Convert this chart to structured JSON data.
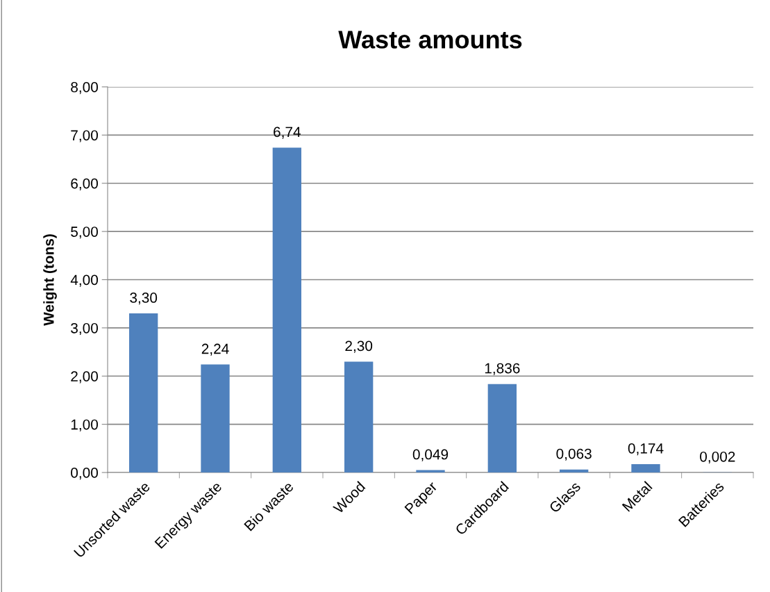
{
  "chart_data": {
    "type": "bar",
    "title": "Waste amounts",
    "ylabel": "Weight (tons)",
    "categories": [
      "Unsorted waste",
      "Energy waste",
      "Bio waste",
      "Wood",
      "Paper",
      "Cardboard",
      "Glass",
      "Metal",
      "Batteries"
    ],
    "values": [
      3.3,
      2.24,
      6.74,
      2.3,
      0.049,
      1.836,
      0.063,
      0.174,
      0.002
    ],
    "value_labels": [
      "3,30",
      "2,24",
      "6,74",
      "2,30",
      "0,049",
      "1,836",
      "0,063",
      "0,174",
      "0,002"
    ],
    "color": "#4f81bd",
    "ylim": [
      0,
      8
    ],
    "yticks": [
      {
        "value": 0,
        "label": "0,00"
      },
      {
        "value": 1,
        "label": "1,00"
      },
      {
        "value": 2,
        "label": "2,00"
      },
      {
        "value": 3,
        "label": "3,00"
      },
      {
        "value": 4,
        "label": "4,00"
      },
      {
        "value": 5,
        "label": "5,00"
      },
      {
        "value": 6,
        "label": "6,00"
      },
      {
        "value": 7,
        "label": "7,00"
      },
      {
        "value": 8,
        "label": "8,00"
      }
    ],
    "grid": "y"
  }
}
